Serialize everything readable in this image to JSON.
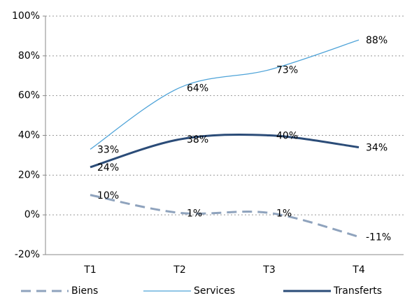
{
  "chart_data": {
    "type": "line",
    "categories": [
      "T1",
      "T2",
      "T3",
      "T4"
    ],
    "series": [
      {
        "name": "Biens",
        "color": "#8fa3bd",
        "dash": true,
        "width": 3,
        "values": [
          10,
          1,
          1,
          -11
        ],
        "value_labels": [
          "10%",
          "1%",
          "1%",
          "-11%"
        ]
      },
      {
        "name": "Services",
        "color": "#4ea3d8",
        "dash": false,
        "width": 1.3,
        "values": [
          33,
          64,
          73,
          88
        ],
        "value_labels": [
          "33%",
          "64%",
          "73%",
          "88%"
        ]
      },
      {
        "name": "Transferts",
        "color": "#2b4c78",
        "dash": false,
        "width": 3,
        "values": [
          24,
          38,
          40,
          34
        ],
        "value_labels": [
          "24%",
          "38%",
          "40%",
          "34%"
        ]
      }
    ],
    "ylim": [
      -20,
      100
    ],
    "yticks": [
      {
        "value": -20,
        "label": "-20%"
      },
      {
        "value": 0,
        "label": "0%"
      },
      {
        "value": 20,
        "label": "20%"
      },
      {
        "value": 40,
        "label": "40%"
      },
      {
        "value": 60,
        "label": "60%"
      },
      {
        "value": 80,
        "label": "80%"
      },
      {
        "value": 100,
        "label": "100%"
      }
    ],
    "grid": true,
    "smooth": true,
    "legend": "bottom"
  }
}
